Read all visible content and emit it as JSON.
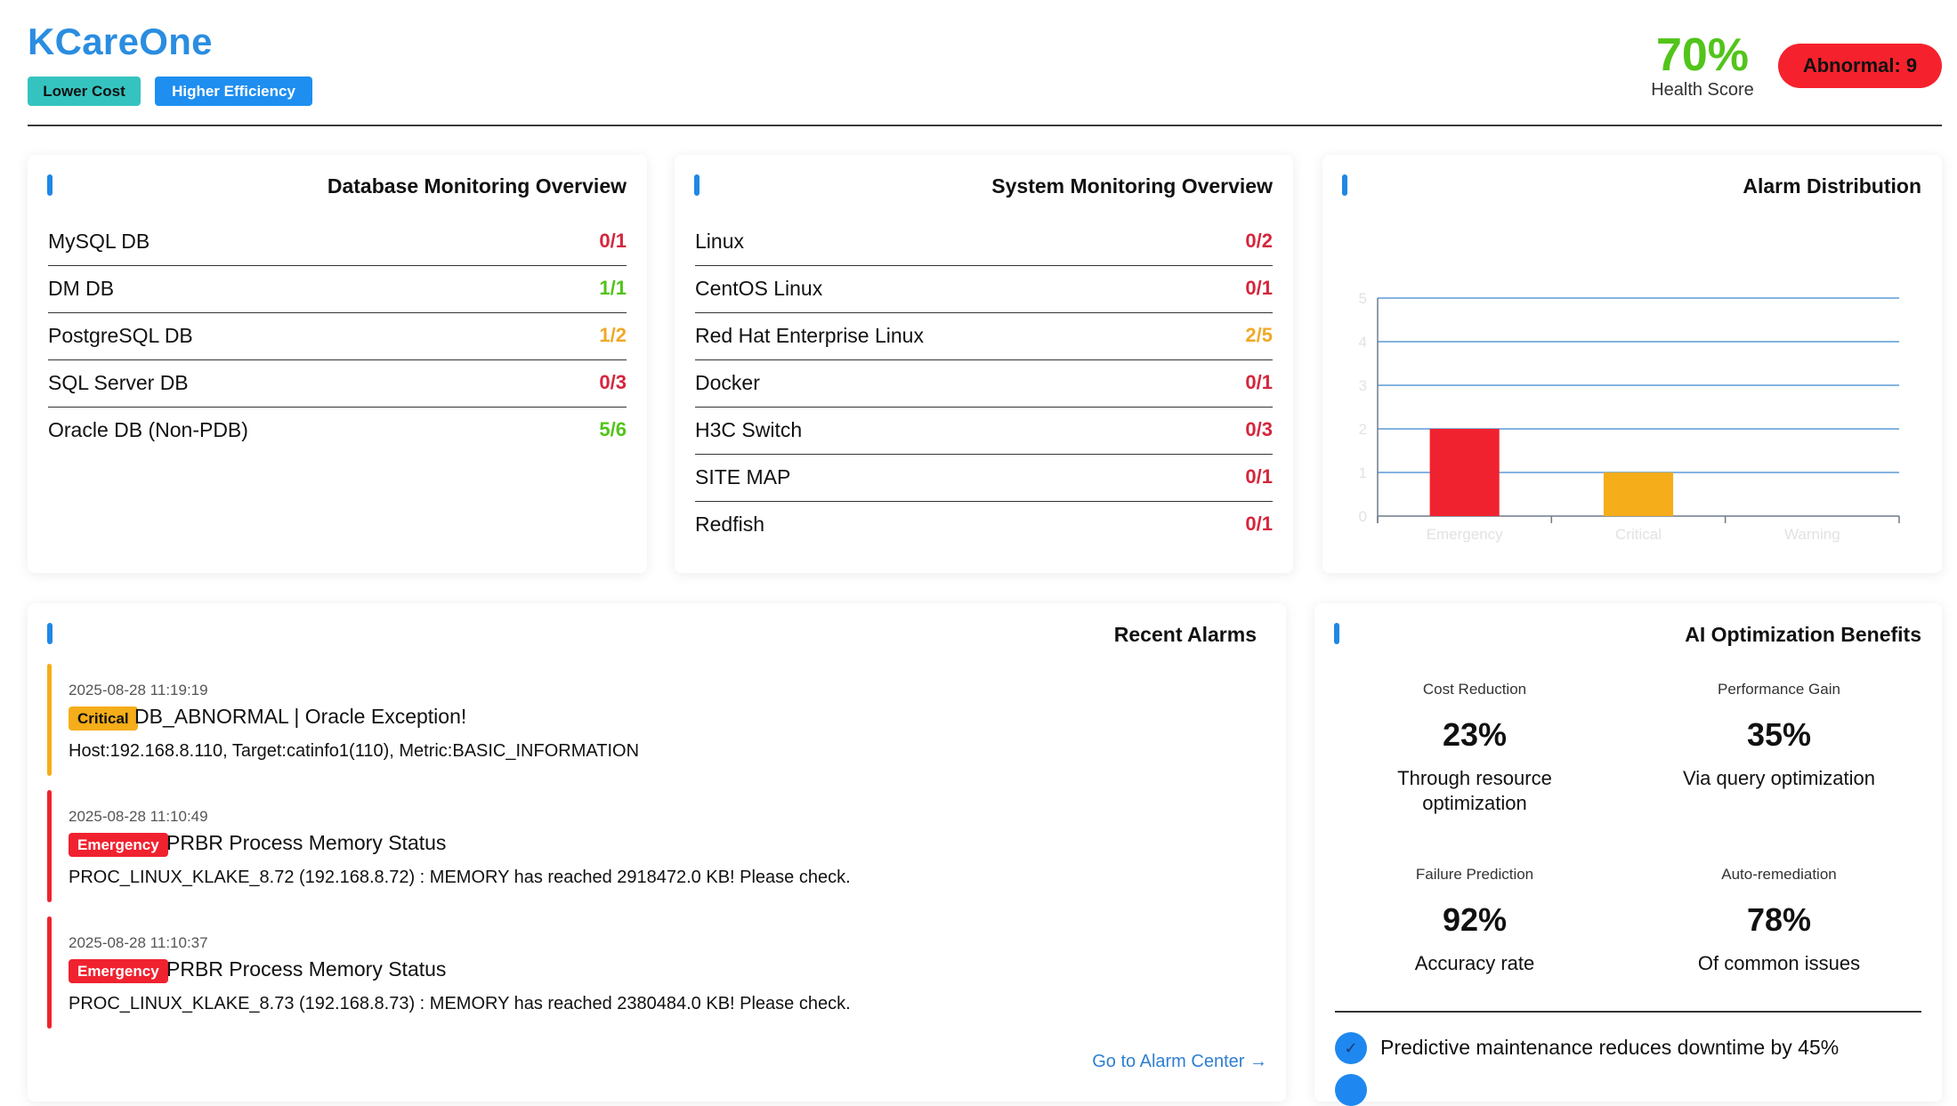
{
  "header": {
    "brand": "KCareOne",
    "tags": [
      "Lower Cost",
      "Higher Efficiency"
    ],
    "health_score": "70%",
    "health_label": "Health Score",
    "abnormal": "Abnormal: 9"
  },
  "colors": {
    "brand": "#2a8de0",
    "ok": "#52c41a",
    "warn": "#f0a928",
    "bad": "#d4263d",
    "emergency": "#f0222f",
    "critical": "#f5ad19",
    "accent": "#1e88e5",
    "link": "#2f7fcf"
  },
  "database": {
    "title": "Database Monitoring Overview",
    "rows": [
      {
        "name": "MySQL DB",
        "value": "0/1",
        "status": "bad"
      },
      {
        "name": "DM DB",
        "value": "1/1",
        "status": "ok"
      },
      {
        "name": "PostgreSQL DB",
        "value": "1/2",
        "status": "warn"
      },
      {
        "name": "SQL Server DB",
        "value": "0/3",
        "status": "bad"
      },
      {
        "name": "Oracle DB (Non-PDB)",
        "value": "5/6",
        "status": "ok"
      }
    ]
  },
  "system": {
    "title": "System Monitoring Overview",
    "rows": [
      {
        "name": "Linux",
        "value": "0/2",
        "status": "bad"
      },
      {
        "name": "CentOS Linux",
        "value": "0/1",
        "status": "bad"
      },
      {
        "name": "Red Hat Enterprise Linux",
        "value": "2/5",
        "status": "warn"
      },
      {
        "name": "Docker",
        "value": "0/1",
        "status": "bad"
      },
      {
        "name": "H3C Switch",
        "value": "0/3",
        "status": "bad"
      },
      {
        "name": "SITE MAP",
        "value": "0/1",
        "status": "bad"
      },
      {
        "name": "Redfish",
        "value": "0/1",
        "status": "bad"
      }
    ]
  },
  "alarm_distribution": {
    "title": "Alarm Distribution"
  },
  "chart_data": {
    "type": "bar",
    "title": "Alarm Distribution",
    "categories": [
      "Emergency",
      "Critical",
      "Warning"
    ],
    "values": [
      2,
      1,
      0
    ],
    "bar_colors": [
      "#f0222f",
      "#f5ad19",
      "#f5ad19"
    ],
    "yticks": [
      "0",
      "1",
      "2",
      "3",
      "4",
      "5"
    ],
    "ylim": [
      0,
      5
    ],
    "xlabel": "",
    "ylabel": "",
    "grid": true,
    "legend": "none"
  },
  "recent_alarms": {
    "title": "Recent Alarms",
    "items": [
      {
        "time": "2025-08-28 11:19:19",
        "level": "Critical",
        "title": "DB_ABNORMAL | Oracle Exception!",
        "desc": "Host:192.168.8.110, Target:catinfo1(110), Metric:BASIC_INFORMATION"
      },
      {
        "time": "2025-08-28 11:10:49",
        "level": "Emergency",
        "title": "PRBR Process Memory Status",
        "desc": "PROC_LINUX_KLAKE_8.72 (192.168.8.72) : MEMORY has reached 2918472.0 KB! Please check."
      },
      {
        "time": "2025-08-28 11:10:37",
        "level": "Emergency",
        "title": "PRBR Process Memory Status",
        "desc": "PROC_LINUX_KLAKE_8.73 (192.168.8.73) : MEMORY has reached 2380484.0 KB! Please check."
      }
    ],
    "link": "Go to Alarm Center →"
  },
  "ai": {
    "title": "AI Optimization Benefits",
    "metrics": [
      {
        "label": "Cost Reduction",
        "value": "23%",
        "desc": "Through resource optimization"
      },
      {
        "label": "Performance Gain",
        "value": "35%",
        "desc": "Via query optimization"
      },
      {
        "label": "Failure Prediction",
        "value": "92%",
        "desc": "Accuracy rate"
      },
      {
        "label": "Auto-remediation",
        "value": "78%",
        "desc": "Of common issues"
      }
    ],
    "bullets": [
      "Predictive maintenance reduces downtime by 45%"
    ],
    "check_glyph": "✓"
  }
}
